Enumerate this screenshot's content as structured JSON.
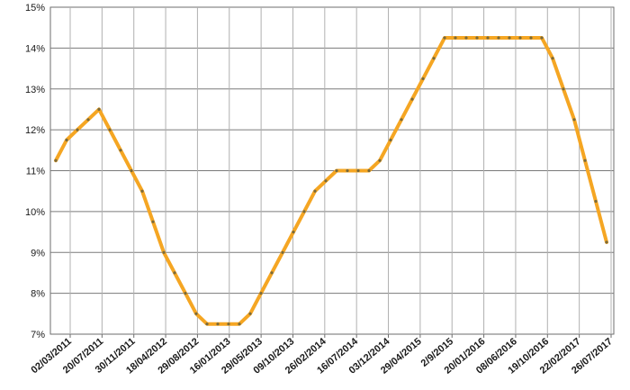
{
  "chart_data": {
    "type": "line",
    "title": "",
    "xlabel": "",
    "ylabel": "",
    "ylim": [
      7,
      15
    ],
    "y_ticks": [
      "7%",
      "8%",
      "9%",
      "10%",
      "11%",
      "12%",
      "13%",
      "14%",
      "15%"
    ],
    "x_tick_labels": [
      "02/03/2011",
      "20/07/2011",
      "30/11/2011",
      "18/04/2012",
      "29/08/2012",
      "16/01/2013",
      "29/05/2013",
      "09/10/2013",
      "26/02/2014",
      "16/07/2014",
      "03/12/2014",
      "29/04/2015",
      "2/9/2015",
      "20/01/2016",
      "08/06/2016",
      "19/10/2016",
      "22/02/2017",
      "26/07/2017"
    ],
    "grid": true,
    "legend": "none",
    "line_color": "#f5a623",
    "marker_color": "#7a6a3a",
    "series": [
      {
        "values": [
          11.25,
          11.75,
          12.0,
          12.25,
          12.5,
          12.0,
          11.5,
          11.0,
          10.5,
          9.75,
          9.0,
          8.5,
          8.0,
          7.5,
          7.25,
          7.25,
          7.25,
          7.25,
          7.5,
          8.0,
          8.5,
          9.0,
          9.5,
          10.0,
          10.5,
          10.75,
          11.0,
          11.0,
          11.0,
          11.0,
          11.25,
          11.75,
          12.25,
          12.75,
          13.25,
          13.75,
          14.25,
          14.25,
          14.25,
          14.25,
          14.25,
          14.25,
          14.25,
          14.25,
          14.25,
          14.25,
          13.75,
          13.0,
          12.25,
          11.25,
          10.25,
          9.25
        ]
      }
    ]
  }
}
